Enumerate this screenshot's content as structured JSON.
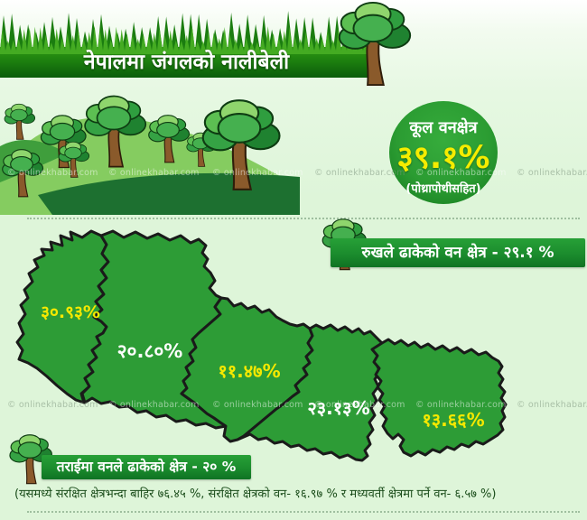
{
  "header": {
    "title": "नेपालमा जंगलको नालीबेली"
  },
  "badge": {
    "label": "कूल वनक्षेत्र",
    "value": "३९.१%",
    "note": "(पोथ्रापोथीसहित)"
  },
  "sections": {
    "tree_cover": {
      "label": "रुखले ढाकेको वन क्षेत्र - २९.१ %"
    },
    "terai": {
      "label": "तराईमा वनले ढाकेको क्षेत्र - २० %",
      "detail": "(यसमध्ये संरक्षित क्षेत्रभन्दा बाहिर ७६.४५ %, संरक्षित क्षेत्रको वन- १६.९७ % र मध्यवर्ती क्षेत्रमा पर्ने वन- ६.५७ %)"
    }
  },
  "watermark": {
    "text": "© onlinekhabar.com"
  },
  "colors": {
    "accent_yellow": "#f5ec00",
    "map_green": "#2d9c36",
    "banner_dark_green": "#0b5c0b",
    "label_box_green": "#1d9232",
    "background_green": "#def5d9"
  },
  "chart_data": {
    "type": "map",
    "title": "नेपालमा जंगलको नालीबेली",
    "total_forest_area": {
      "label": "कूल वनक्षेत्र",
      "value_pct": 39.1,
      "value_label": "३९.१%",
      "note": "(पोथ्रापोथीसहित)"
    },
    "tree_covered_forest_pct": 29.1,
    "tree_covered_forest_label": "रुखले ढाकेको वन क्षेत्र - २९.१ %",
    "map_regions_west_to_east": [
      {
        "value_pct": 30.93,
        "value_label": "३०.९३%",
        "label_color": "yellow"
      },
      {
        "value_pct": 20.8,
        "value_label": "२०.८०%",
        "label_color": "white"
      },
      {
        "value_pct": 11.47,
        "value_label": "११.४७%",
        "label_color": "yellow"
      },
      {
        "value_pct": 23.13,
        "value_label": "२३.१३%",
        "label_color": "white"
      },
      {
        "value_pct": 13.66,
        "value_label": "१३.६६%",
        "label_color": "yellow"
      }
    ],
    "terai_forest_pct": 20,
    "terai_forest_label": "तराईमा वनले ढाकेको क्षेत्र - २० %",
    "terai_breakdown_pct": {
      "outside_protected_areas": 76.45,
      "protected_area_forest": 16.97,
      "buffer_zone_forest": 6.57
    }
  }
}
